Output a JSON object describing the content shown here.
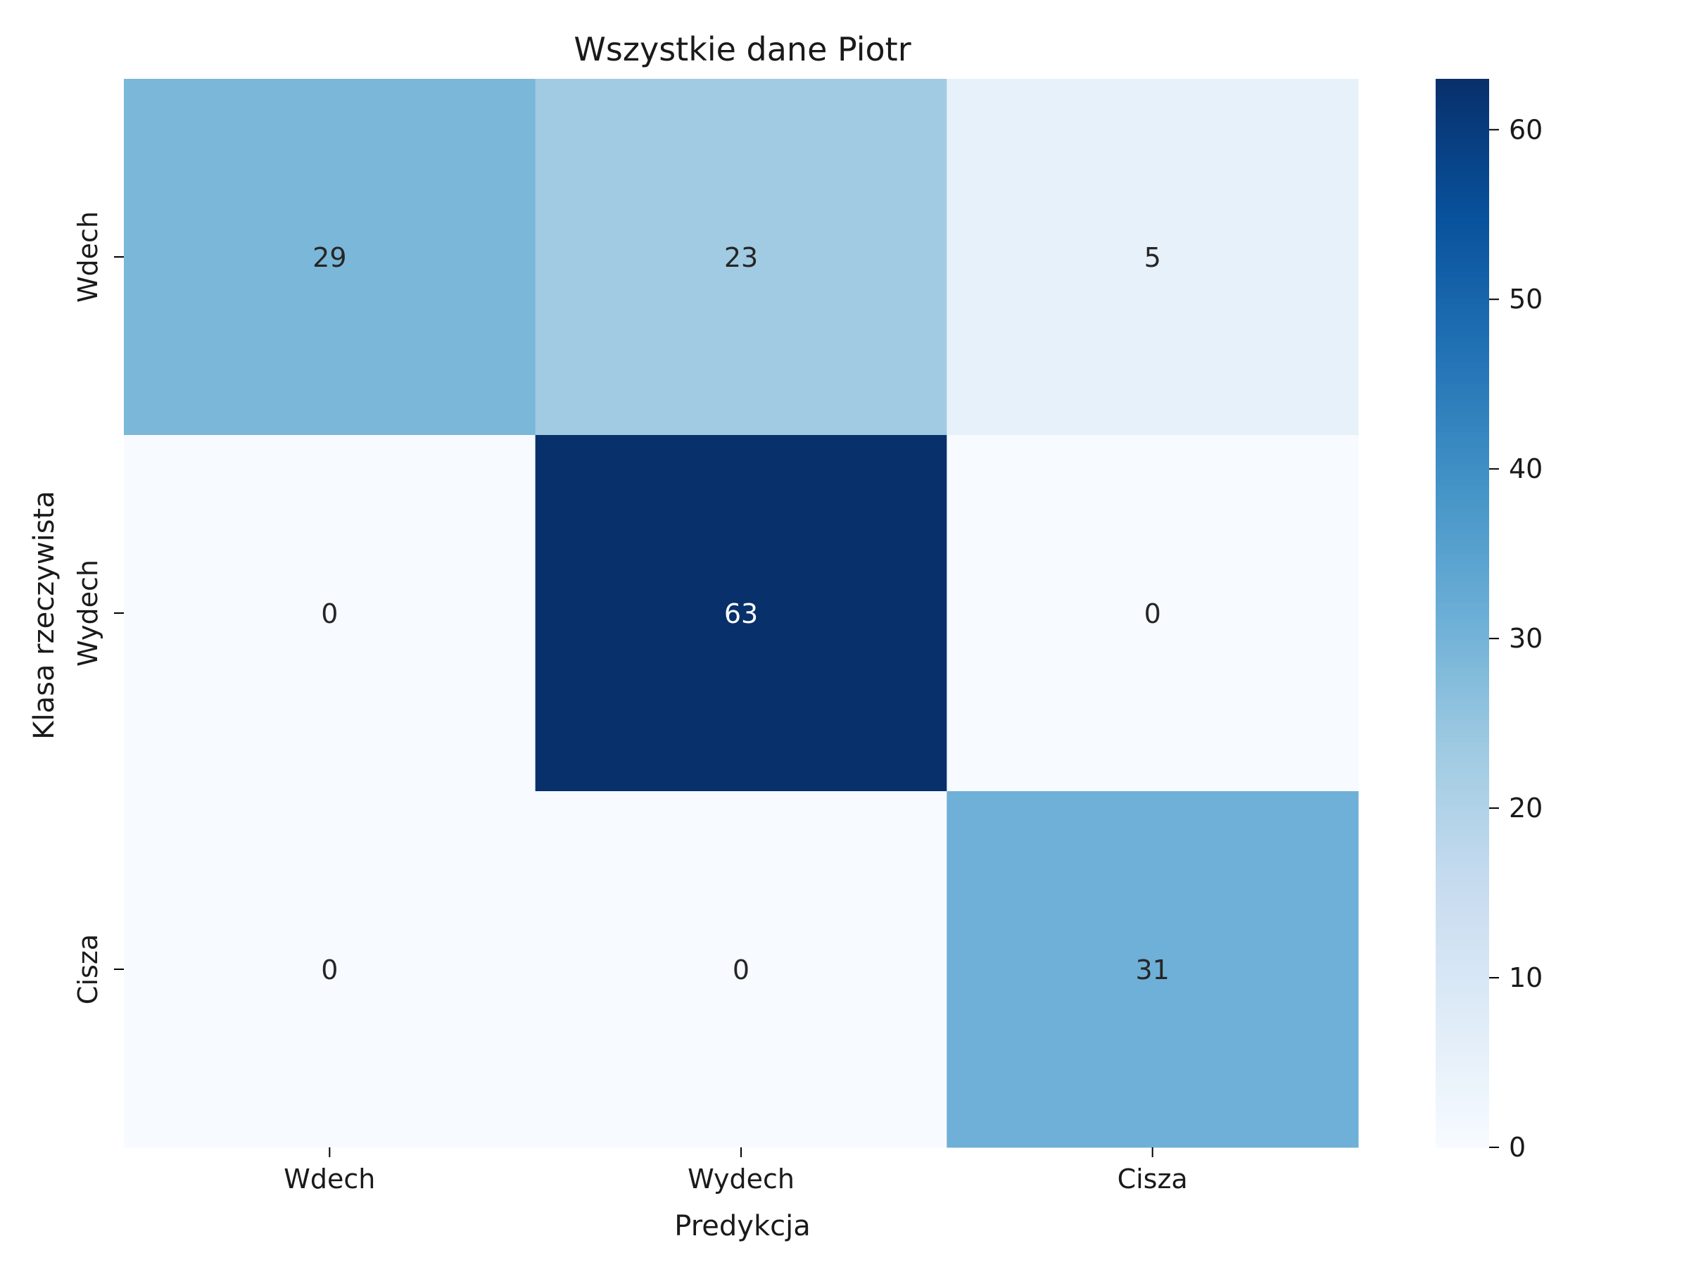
{
  "chart_data": {
    "type": "heatmap",
    "title": "Wszystkie dane Piotr",
    "xlabel": "Predykcja",
    "ylabel": "Klasa rzeczywista",
    "x_categories": [
      "Wdech",
      "Wydech",
      "Cisza"
    ],
    "y_categories": [
      "Wdech",
      "Wydech",
      "Cisza"
    ],
    "values": [
      [
        29,
        23,
        5
      ],
      [
        0,
        63,
        0
      ],
      [
        0,
        0,
        31
      ]
    ],
    "colormap": "Blues",
    "colorbar": {
      "vmin": 0,
      "vmax": 63,
      "ticks": [
        0,
        10,
        20,
        30,
        40,
        50,
        60
      ]
    },
    "grid": false,
    "annotations": true
  }
}
